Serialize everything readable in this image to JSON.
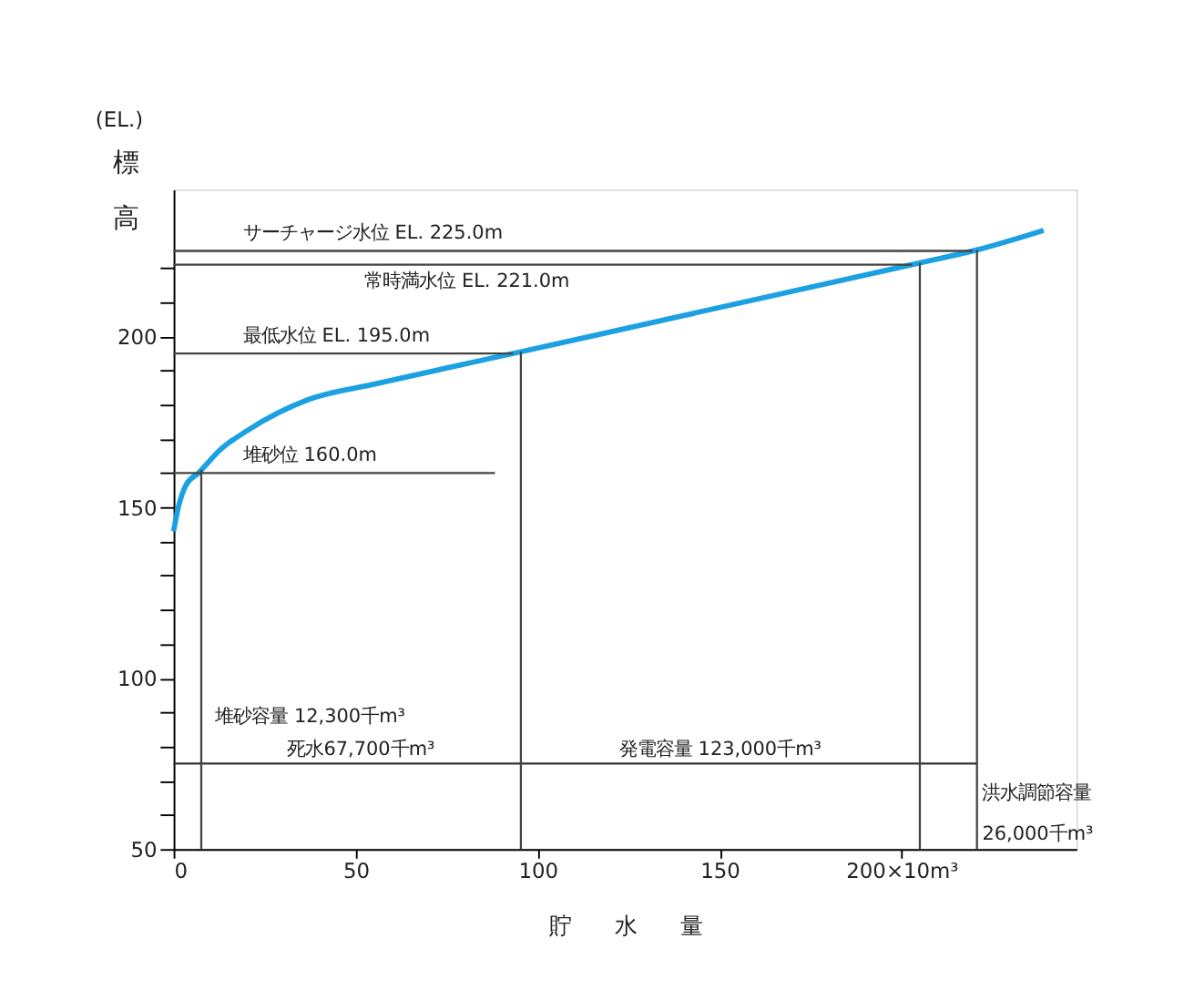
{
  "chart_data": {
    "type": "line",
    "xlabel": "貯　　水　　量",
    "ylabel": "標高",
    "x": [
      0,
      1.3,
      3.4,
      6.8,
      13,
      20.3,
      37,
      55,
      95.4,
      205,
      220.7,
      239
    ],
    "series": [
      {
        "color": "#1ba1e2",
        "values": [
          143,
          150,
          156.5,
          160,
          167,
          172.5,
          181.5,
          186,
          195.5,
          221.5,
          225.3,
          231
        ]
      }
    ],
    "xlim": [
      0,
      248
    ],
    "ylim": [
      50,
      243
    ],
    "xticks": [
      0,
      50,
      100,
      150,
      {
        "value": 200,
        "label": "200×10m³"
      }
    ],
    "yticks": [
      50,
      {
        "value": 60,
        "label": null
      },
      {
        "value": 70,
        "label": null
      },
      {
        "value": 80,
        "label": null
      },
      {
        "value": 90,
        "label": null
      },
      100,
      {
        "value": 110,
        "label": null
      },
      {
        "value": 120,
        "label": null
      },
      {
        "value": 130,
        "label": null
      },
      {
        "value": 140,
        "label": null
      },
      150,
      {
        "value": 160,
        "label": null
      },
      {
        "value": 170,
        "label": null
      },
      {
        "value": 180,
        "label": null
      },
      {
        "value": 190,
        "label": null
      },
      200,
      {
        "value": 210,
        "label": null
      },
      {
        "value": 220,
        "label": null
      }
    ],
    "grid": false,
    "legend": false,
    "marker": "none",
    "line_style": "solid",
    "ref_lines": [
      {
        "axis": "y",
        "value": 225,
        "label": "サーチャージ水位 EL. 225.0m",
        "color": "#444444"
      },
      {
        "axis": "y",
        "value": 221,
        "label": "常時満水位 EL. 221.0m",
        "color": "#444444"
      },
      {
        "axis": "y",
        "value": 195,
        "label": "最低水位 EL. 195.0m",
        "color": "#444444"
      },
      {
        "axis": "y",
        "value": 160,
        "label": "堆砂位 160.0m",
        "color": "#444444"
      },
      {
        "axis": "y",
        "value": 75,
        "color": "#333333"
      },
      {
        "axis": "x",
        "value": 7.6,
        "color": "#444444"
      },
      {
        "axis": "x",
        "value": 95.4,
        "color": "#444444"
      },
      {
        "axis": "x",
        "value": 205,
        "color": "#444444"
      },
      {
        "axis": "x",
        "value": 220.7,
        "color": "#444444"
      }
    ],
    "annotations": [
      "(EL.)",
      "堆砂容量 12,300千m³",
      "死水67,700千m³",
      "発電容量 123,000千m³",
      "洪水調節容量\n26,000千m³"
    ]
  }
}
